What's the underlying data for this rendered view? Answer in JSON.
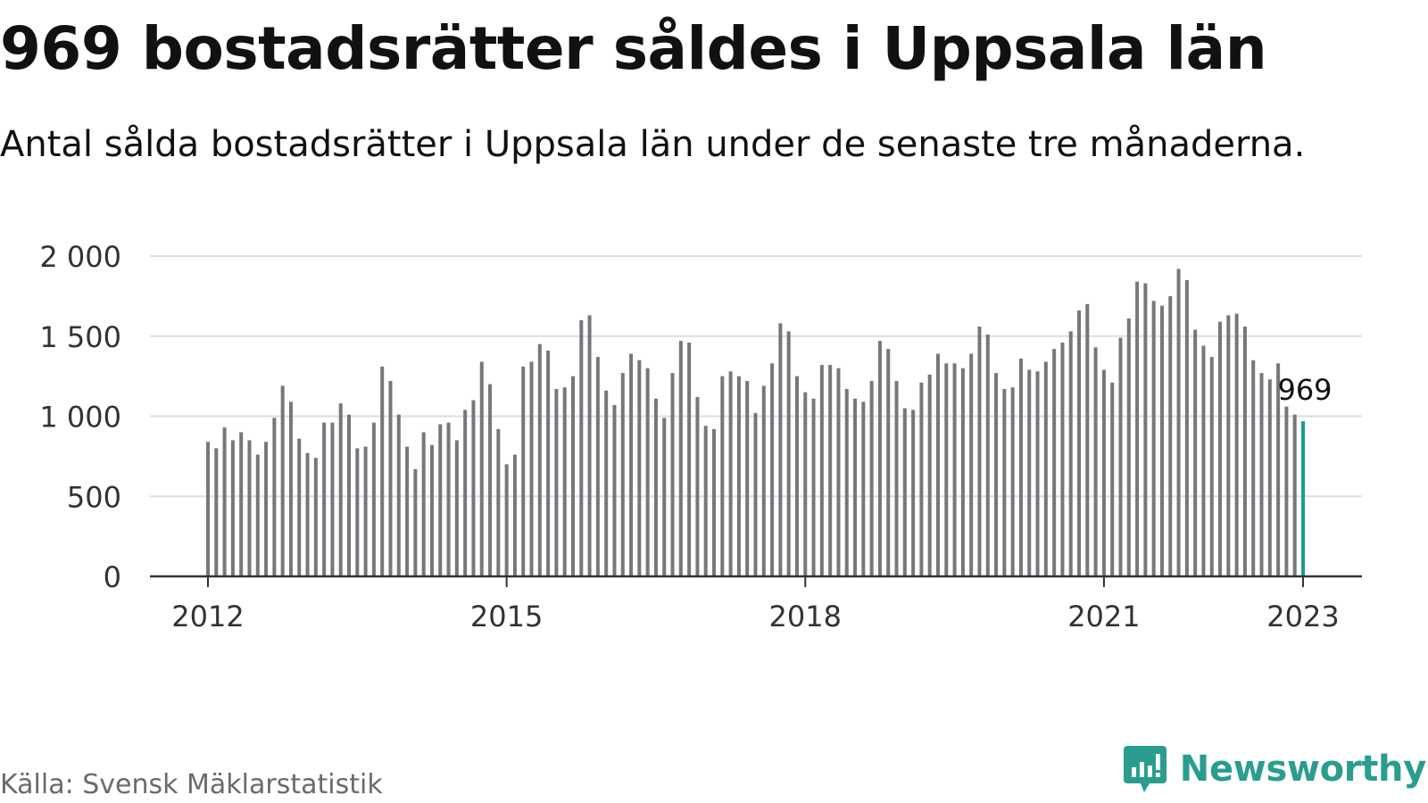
{
  "header": {
    "title": "969 bostadsrätter såldes i Uppsala län",
    "subtitle": "Antal sålda bostadsrätter i Uppsala län under de senaste tre månaderna."
  },
  "footer": {
    "source": "Källa: Svensk Mäklarstatistik",
    "brand": "Newsworthy"
  },
  "colors": {
    "bar": "#77767b",
    "highlight": "#1a9e8f",
    "grid": "#dddddd",
    "axis": "#333333",
    "brand": "#2a9d8f"
  },
  "chart_data": {
    "type": "bar",
    "x_start": "2012-01",
    "x_end": "2023-01",
    "x_ticks": [
      "2012",
      "2015",
      "2018",
      "2021",
      "2023"
    ],
    "ylim": [
      0,
      2000
    ],
    "y_ticks": [
      {
        "value": 0,
        "label": "0"
      },
      {
        "value": 500,
        "label": "500"
      },
      {
        "value": 1000,
        "label": "1 000"
      },
      {
        "value": 1500,
        "label": "1 500"
      },
      {
        "value": 2000,
        "label": "2 000"
      }
    ],
    "grid": true,
    "highlight_label": "969",
    "values": [
      840,
      800,
      930,
      850,
      900,
      850,
      760,
      840,
      990,
      1190,
      1090,
      860,
      770,
      740,
      960,
      960,
      1080,
      1010,
      800,
      810,
      960,
      1310,
      1220,
      1010,
      810,
      670,
      900,
      820,
      950,
      960,
      850,
      1040,
      1100,
      1340,
      1200,
      920,
      700,
      760,
      1310,
      1340,
      1450,
      1410,
      1170,
      1180,
      1250,
      1600,
      1630,
      1370,
      1160,
      1070,
      1270,
      1390,
      1350,
      1300,
      1110,
      990,
      1270,
      1470,
      1460,
      1120,
      940,
      920,
      1250,
      1280,
      1250,
      1220,
      1020,
      1190,
      1330,
      1580,
      1530,
      1250,
      1150,
      1110,
      1320,
      1320,
      1300,
      1170,
      1110,
      1090,
      1220,
      1470,
      1420,
      1220,
      1050,
      1040,
      1210,
      1260,
      1390,
      1330,
      1330,
      1300,
      1390,
      1560,
      1510,
      1270,
      1170,
      1180,
      1360,
      1290,
      1280,
      1340,
      1420,
      1460,
      1530,
      1660,
      1700,
      1430,
      1290,
      1210,
      1490,
      1610,
      1840,
      1830,
      1720,
      1690,
      1750,
      1920,
      1850,
      1540,
      1440,
      1370,
      1590,
      1630,
      1640,
      1560,
      1350,
      1270,
      1230,
      1330,
      1060,
      1010,
      969
    ]
  }
}
